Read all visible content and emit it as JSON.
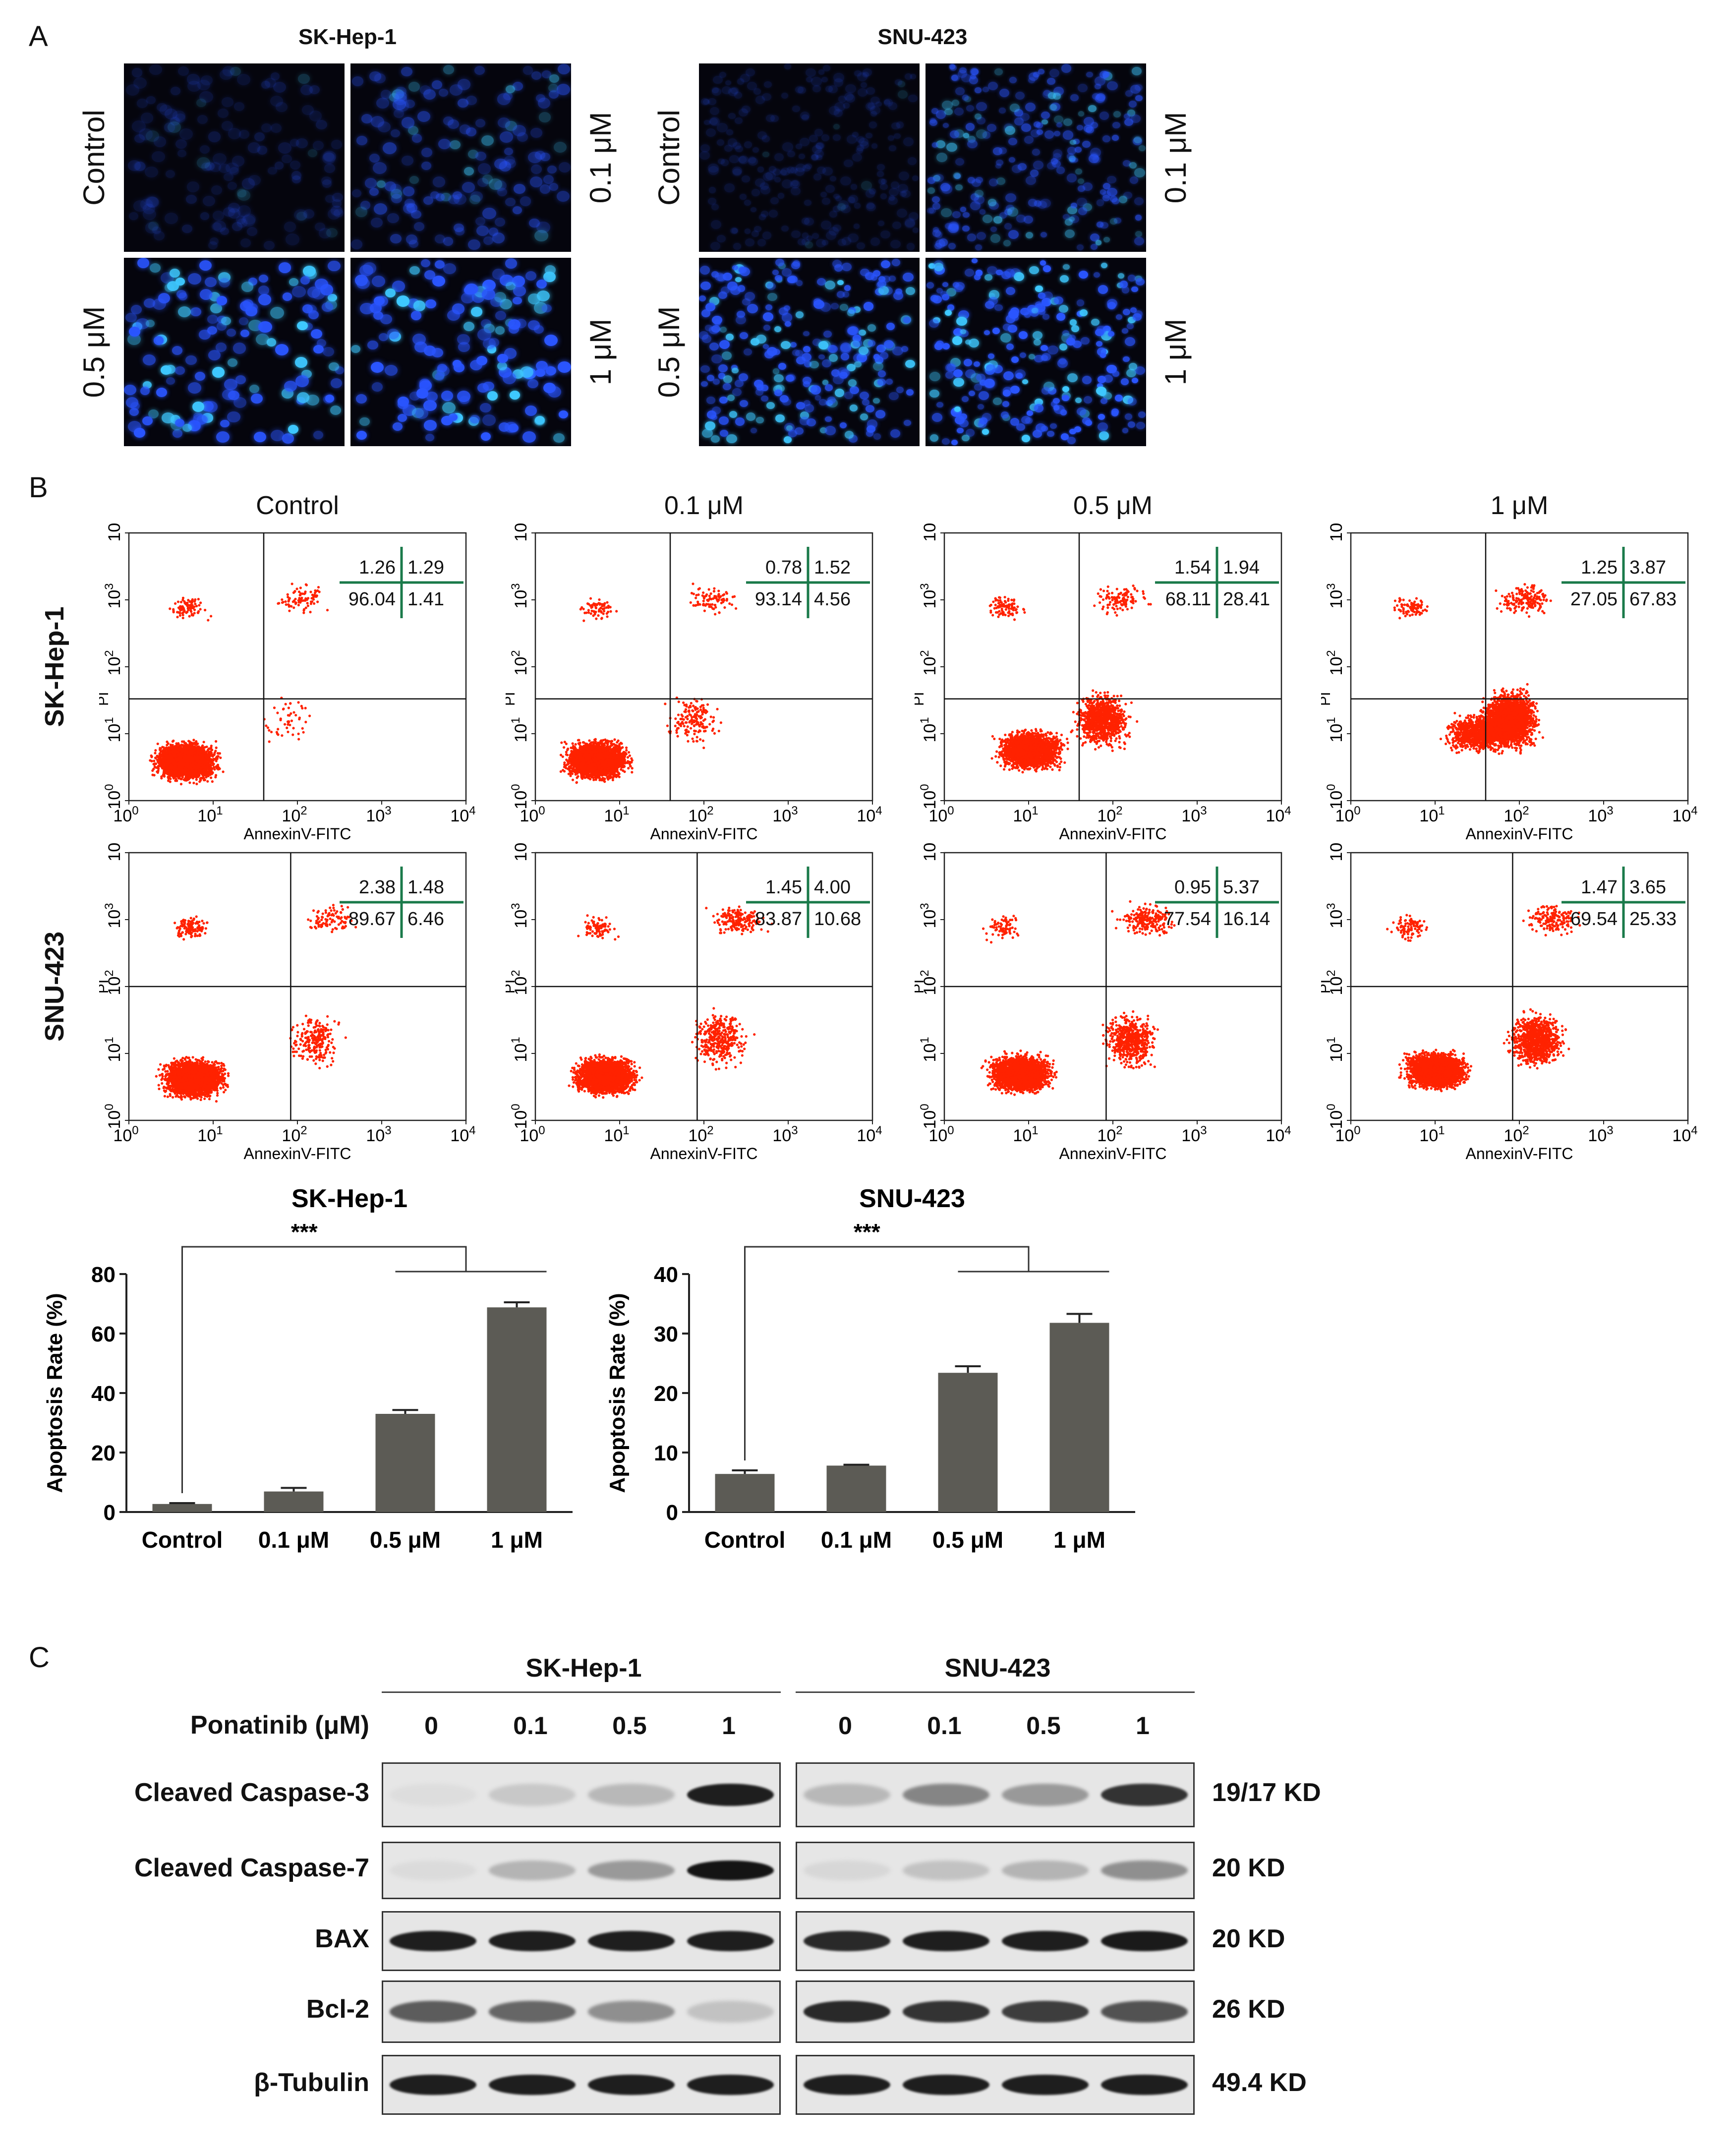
{
  "panel_letters": {
    "a": "A",
    "b": "B",
    "c": "C"
  },
  "panel_a": {
    "cell_lines": [
      {
        "name": "SK-Hep-1",
        "labels": {
          "tl": "Control",
          "tr": "0.1 μM",
          "bl": "0.5 μM",
          "br": "1 μM"
        }
      },
      {
        "name": "SNU-423",
        "labels": {
          "tl": "Control",
          "tr": "0.1 μM",
          "bl": "0.5 μM",
          "br": "1 μM"
        }
      }
    ],
    "image_brightness": [
      [
        0.18,
        0.45,
        0.85,
        0.9
      ],
      [
        0.12,
        0.55,
        0.8,
        0.9
      ]
    ],
    "nucleus_color": "#2a55ff",
    "nucleus_bright_color": "#3ec8ff"
  },
  "panel_b": {
    "conditions": [
      "Control",
      "0.1 μM",
      "0.5 μM",
      "1 μM"
    ],
    "row_labels": [
      "SK-Hep-1",
      "SNU-423"
    ],
    "x_axis_label": "AnnexinV-FITC",
    "y_axis_label": "PI",
    "tick_base": "10",
    "tick_exponents": [
      "0",
      "1",
      "2",
      "3",
      "4"
    ],
    "dot_color": "#ff2200",
    "quadrant_color": "#1a7a4a",
    "plots": [
      [
        {
          "ul": "1.26",
          "ur": "1.29",
          "ll": "96.04",
          "lr": "1.41"
        },
        {
          "ul": "0.78",
          "ur": "1.52",
          "ll": "93.14",
          "lr": "4.56"
        },
        {
          "ul": "1.54",
          "ur": "1.94",
          "ll": "68.11",
          "lr": "28.41"
        },
        {
          "ul": "1.25",
          "ur": "3.87",
          "ll": "27.05",
          "lr": "67.83"
        }
      ],
      [
        {
          "ul": "2.38",
          "ur": "1.48",
          "ll": "89.67",
          "lr": "6.46"
        },
        {
          "ul": "1.45",
          "ur": "4.00",
          "ll": "83.87",
          "lr": "10.68"
        },
        {
          "ul": "0.95",
          "ur": "5.37",
          "ll": "77.54",
          "lr": "16.14"
        },
        {
          "ul": "1.47",
          "ur": "3.65",
          "ll": "69.54",
          "lr": "25.33"
        }
      ]
    ]
  },
  "chart_data": [
    {
      "type": "bar",
      "title": "SK-Hep-1",
      "categories": [
        "Control",
        "0.1 μM",
        "0.5 μM",
        "1 μM"
      ],
      "values": [
        2.7,
        6.9,
        33.0,
        68.8
      ],
      "errors": [
        0.3,
        1.2,
        1.3,
        1.7
      ],
      "ylabel": "Apoptosis Rate (%)",
      "xlabel": "",
      "ylim": [
        0,
        80
      ],
      "yticks": [
        0,
        20,
        40,
        60,
        80
      ],
      "significance": "***",
      "bar_color": "#5c5b55"
    },
    {
      "type": "bar",
      "title": "SNU-423",
      "categories": [
        "Control",
        "0.1 μM",
        "0.5 μM",
        "1 μM"
      ],
      "values": [
        6.4,
        7.8,
        23.4,
        31.8
      ],
      "errors": [
        0.6,
        0.15,
        1.1,
        1.5
      ],
      "ylabel": "Apoptosis Rate (%)",
      "xlabel": "",
      "ylim": [
        0,
        40
      ],
      "yticks": [
        0,
        10,
        20,
        30,
        40
      ],
      "significance": "***",
      "bar_color": "#5c5b55"
    }
  ],
  "panel_c": {
    "groups": [
      "SK-Hep-1",
      "SNU-423"
    ],
    "treatment_label": "Ponatinib (μM)",
    "doses": [
      "0",
      "0.1",
      "0.5",
      "1"
    ],
    "rows": [
      {
        "label": "Cleaved Caspase-3",
        "kd": "19/17 KD",
        "intensity": [
          [
            0.02,
            0.12,
            0.2,
            0.95
          ],
          [
            0.2,
            0.45,
            0.35,
            0.85
          ]
        ]
      },
      {
        "label": "Cleaved Caspase-7",
        "kd": "20 KD",
        "intensity": [
          [
            0.03,
            0.22,
            0.35,
            1.0
          ],
          [
            0.05,
            0.15,
            0.22,
            0.4
          ]
        ]
      },
      {
        "label": "BAX",
        "kd": "20 KD",
        "intensity": [
          [
            0.95,
            0.95,
            0.95,
            0.95
          ],
          [
            0.9,
            0.95,
            0.95,
            0.97
          ]
        ]
      },
      {
        "label": "Bcl-2",
        "kd": "26 KD",
        "intensity": [
          [
            0.65,
            0.6,
            0.4,
            0.15
          ],
          [
            0.9,
            0.85,
            0.8,
            0.7
          ]
        ]
      },
      {
        "label": "β-Tubulin",
        "kd": "49.4 KD",
        "intensity": [
          [
            0.95,
            0.95,
            0.95,
            0.95
          ],
          [
            0.95,
            0.95,
            0.95,
            0.95
          ]
        ]
      }
    ]
  }
}
